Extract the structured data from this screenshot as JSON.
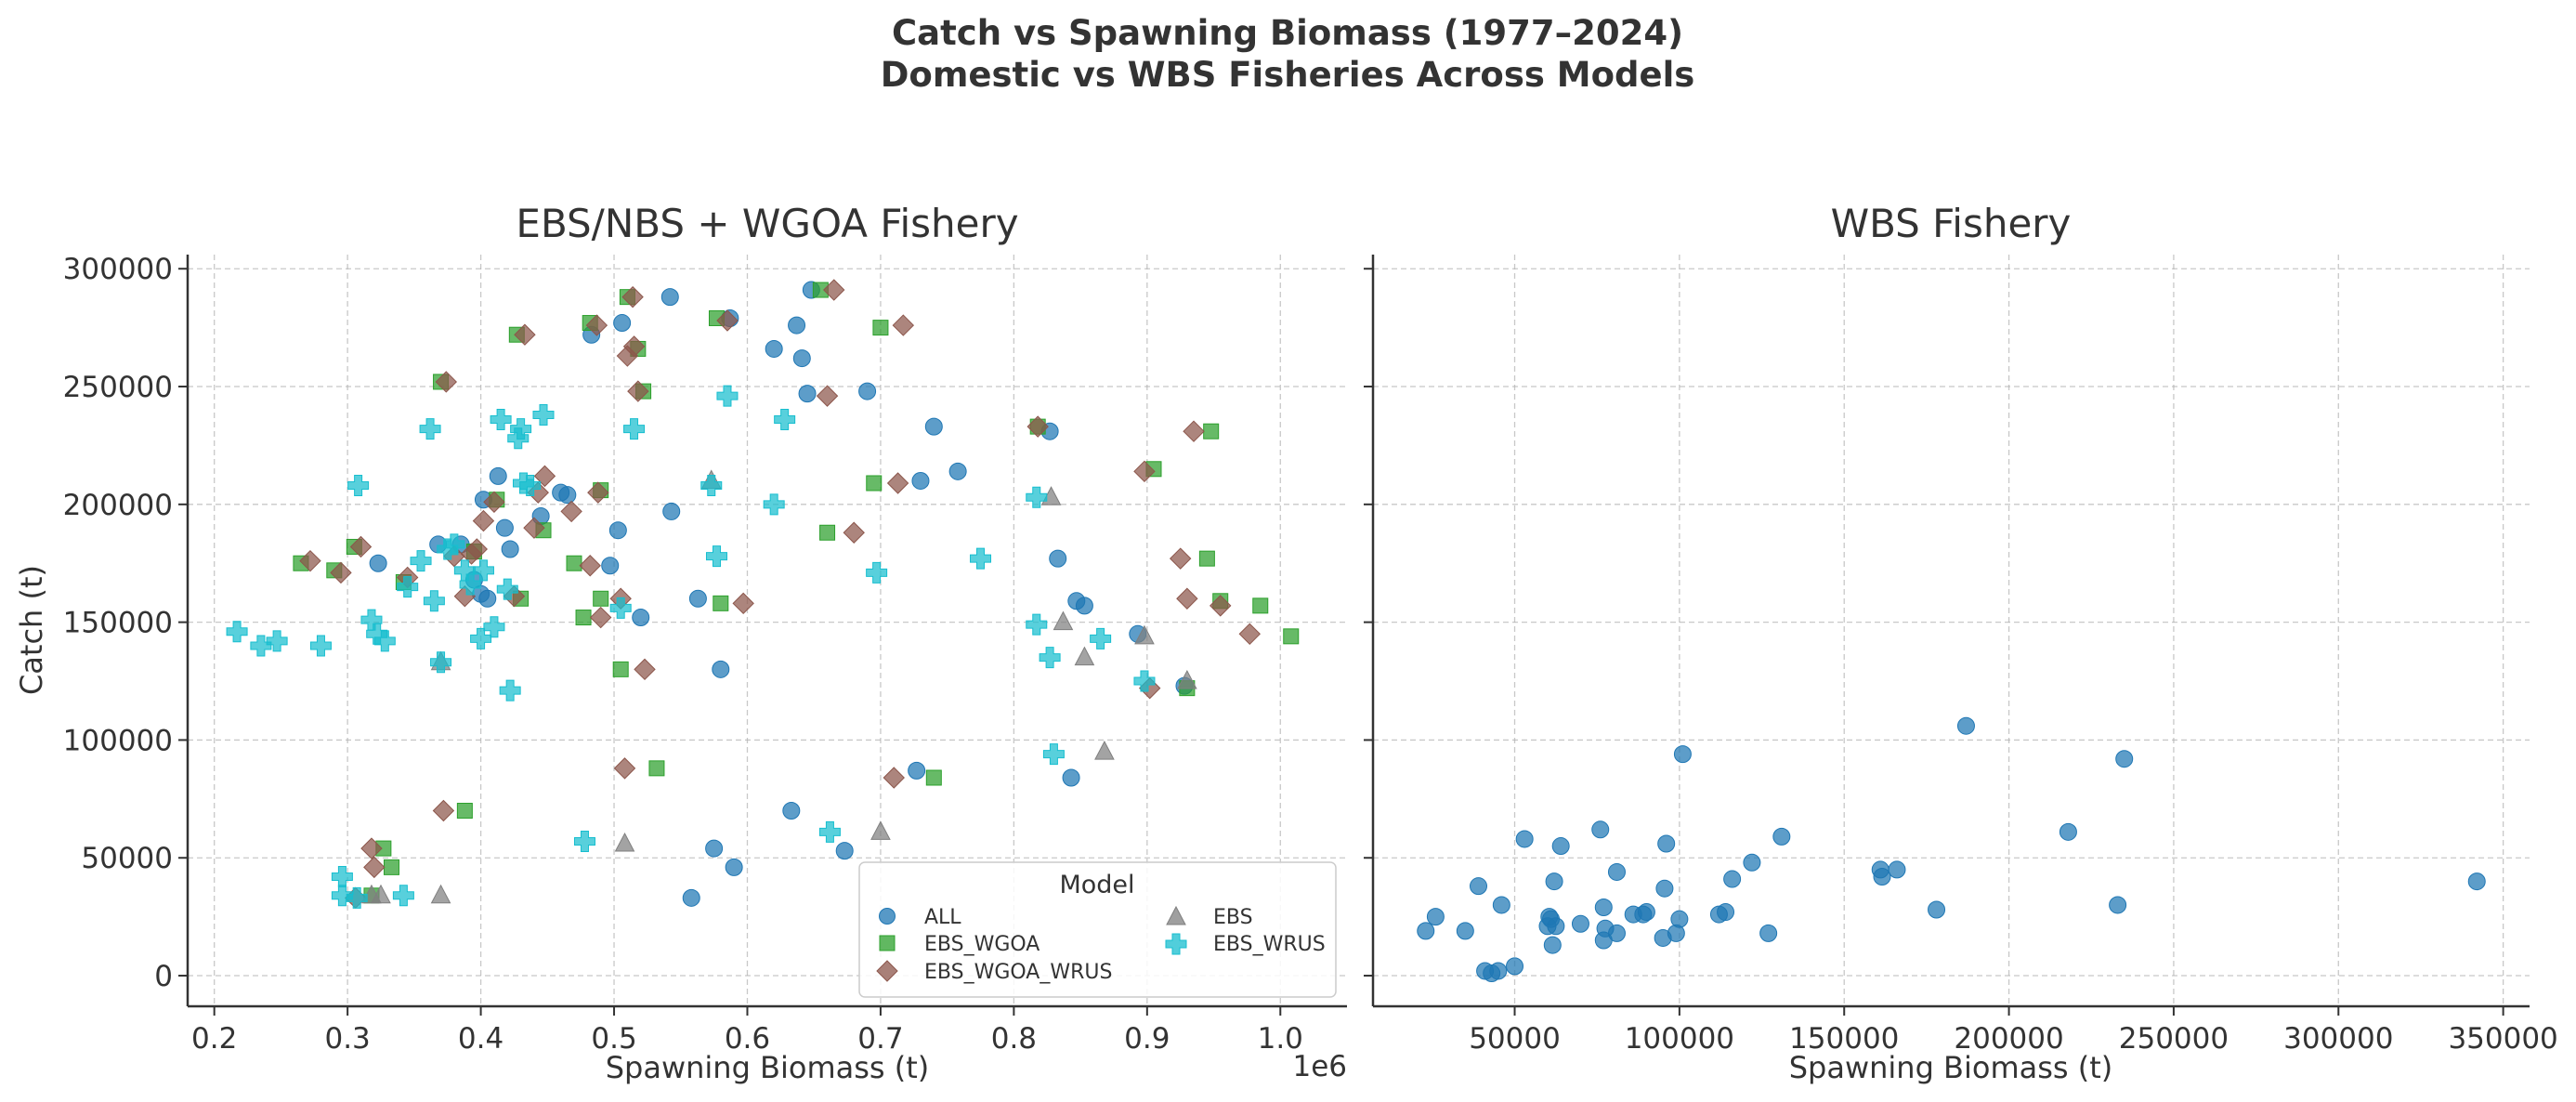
{
  "figure": {
    "title_line1": "Catch vs Spawning Biomass (1977–2024)",
    "title_line2": "Domestic vs WBS Fisheries Across Models"
  },
  "chart_data": [
    {
      "type": "scatter",
      "title": "EBS/NBS + WGOA Fishery",
      "xlabel": "Spawning Biomass (t)",
      "ylabel": "Catch (t)",
      "x_offset_label": "1e6",
      "xlim": [
        0.18,
        1.05
      ],
      "ylim": [
        -13000,
        306000
      ],
      "x_ticks": [
        0.2,
        0.3,
        0.4,
        0.5,
        0.6,
        0.7,
        0.8,
        0.9,
        1.0
      ],
      "x_tick_labels": [
        "0.2",
        "0.3",
        "0.4",
        "0.5",
        "0.6",
        "0.7",
        "0.8",
        "0.9",
        "1.0"
      ],
      "y_ticks": [
        0,
        50000,
        100000,
        150000,
        200000,
        250000,
        300000
      ],
      "y_tick_labels": [
        "0",
        "50000",
        "100000",
        "150000",
        "200000",
        "250000",
        "300000"
      ],
      "grid": true,
      "legend": {
        "title": "Model",
        "placement": "lower-right",
        "columns": 2,
        "order": [
          "ALL",
          "EBS_WGOA",
          "EBS_WGOA_WRUS",
          "EBS",
          "EBS_WRUS"
        ]
      },
      "series": [
        {
          "name": "ALL",
          "marker": "circle",
          "color": "#1f77b4",
          "points": [
            [
              0.323,
              175000
            ],
            [
              0.368,
              183000
            ],
            [
              0.385,
              183000
            ],
            [
              0.395,
              168000
            ],
            [
              0.4,
              162000
            ],
            [
              0.402,
              202000
            ],
            [
              0.405,
              160000
            ],
            [
              0.413,
              212000
            ],
            [
              0.418,
              190000
            ],
            [
              0.422,
              181000
            ],
            [
              0.445,
              195000
            ],
            [
              0.46,
              205000
            ],
            [
              0.465,
              204000
            ],
            [
              0.483,
              272000
            ],
            [
              0.497,
              174000
            ],
            [
              0.503,
              189000
            ],
            [
              0.506,
              277000
            ],
            [
              0.52,
              152000
            ],
            [
              0.543,
              197000
            ],
            [
              0.563,
              160000
            ],
            [
              0.542,
              288000
            ],
            [
              0.587,
              279000
            ],
            [
              0.575,
              54000
            ],
            [
              0.558,
              33000
            ],
            [
              0.59,
              46000
            ],
            [
              0.58,
              130000
            ],
            [
              0.62,
              266000
            ],
            [
              0.637,
              276000
            ],
            [
              0.641,
              262000
            ],
            [
              0.645,
              247000
            ],
            [
              0.648,
              291000
            ],
            [
              0.633,
              70000
            ],
            [
              0.673,
              53000
            ],
            [
              0.69,
              248000
            ],
            [
              0.727,
              87000
            ],
            [
              0.73,
              210000
            ],
            [
              0.74,
              233000
            ],
            [
              0.758,
              214000
            ],
            [
              0.827,
              231000
            ],
            [
              0.833,
              177000
            ],
            [
              0.847,
              159000
            ],
            [
              0.853,
              157000
            ],
            [
              0.843,
              84000
            ],
            [
              0.893,
              145000
            ],
            [
              0.928,
              123000
            ]
          ]
        },
        {
          "name": "EBS_WGOA",
          "marker": "square",
          "color": "#2ca02c",
          "points": [
            [
              0.265,
              175000
            ],
            [
              0.29,
              172000
            ],
            [
              0.305,
              182000
            ],
            [
              0.318,
              34000
            ],
            [
              0.327,
              54000
            ],
            [
              0.333,
              46000
            ],
            [
              0.342,
              167000
            ],
            [
              0.37,
              252000
            ],
            [
              0.388,
              70000
            ],
            [
              0.395,
              180000
            ],
            [
              0.412,
              202000
            ],
            [
              0.427,
              272000
            ],
            [
              0.43,
              160000
            ],
            [
              0.447,
              189000
            ],
            [
              0.47,
              175000
            ],
            [
              0.477,
              152000
            ],
            [
              0.482,
              277000
            ],
            [
              0.49,
              206000
            ],
            [
              0.49,
              160000
            ],
            [
              0.505,
              130000
            ],
            [
              0.51,
              288000
            ],
            [
              0.518,
              266000
            ],
            [
              0.522,
              248000
            ],
            [
              0.532,
              88000
            ],
            [
              0.577,
              279000
            ],
            [
              0.58,
              158000
            ],
            [
              0.655,
              291000
            ],
            [
              0.66,
              188000
            ],
            [
              0.695,
              209000
            ],
            [
              0.7,
              275000
            ],
            [
              0.74,
              84000
            ],
            [
              0.818,
              233000
            ],
            [
              0.905,
              215000
            ],
            [
              0.93,
              122000
            ],
            [
              0.945,
              177000
            ],
            [
              0.948,
              231000
            ],
            [
              0.955,
              159000
            ],
            [
              0.985,
              157000
            ],
            [
              1.008,
              144000
            ]
          ]
        },
        {
          "name": "EBS_WGOA_WRUS",
          "marker": "diamond",
          "color": "#8c564b",
          "points": [
            [
              0.272,
              176000
            ],
            [
              0.295,
              171000
            ],
            [
              0.31,
              182000
            ],
            [
              0.318,
              54000
            ],
            [
              0.32,
              46000
            ],
            [
              0.306,
              33000
            ],
            [
              0.345,
              169000
            ],
            [
              0.374,
              252000
            ],
            [
              0.372,
              70000
            ],
            [
              0.38,
              178000
            ],
            [
              0.388,
              161000
            ],
            [
              0.393,
              179000
            ],
            [
              0.397,
              181000
            ],
            [
              0.402,
              193000
            ],
            [
              0.41,
              201000
            ],
            [
              0.425,
              161000
            ],
            [
              0.433,
              272000
            ],
            [
              0.44,
              190000
            ],
            [
              0.443,
              205000
            ],
            [
              0.448,
              212000
            ],
            [
              0.468,
              197000
            ],
            [
              0.482,
              174000
            ],
            [
              0.487,
              276000
            ],
            [
              0.488,
              205000
            ],
            [
              0.49,
              152000
            ],
            [
              0.505,
              160000
            ],
            [
              0.508,
              88000
            ],
            [
              0.51,
              263000
            ],
            [
              0.514,
              288000
            ],
            [
              0.515,
              267000
            ],
            [
              0.518,
              248000
            ],
            [
              0.523,
              130000
            ],
            [
              0.585,
              278000
            ],
            [
              0.597,
              158000
            ],
            [
              0.66,
              246000
            ],
            [
              0.665,
              291000
            ],
            [
              0.68,
              188000
            ],
            [
              0.71,
              84000
            ],
            [
              0.713,
              209000
            ],
            [
              0.717,
              276000
            ],
            [
              0.818,
              233000
            ],
            [
              0.898,
              214000
            ],
            [
              0.902,
              122000
            ],
            [
              0.925,
              177000
            ],
            [
              0.93,
              160000
            ],
            [
              0.935,
              231000
            ],
            [
              0.955,
              157000
            ],
            [
              0.977,
              145000
            ]
          ]
        },
        {
          "name": "EBS",
          "marker": "triangle",
          "color": "#7f7f7f",
          "points": [
            [
              0.318,
              34000
            ],
            [
              0.325,
              34000
            ],
            [
              0.37,
              133000
            ],
            [
              0.37,
              34000
            ],
            [
              0.508,
              56000
            ],
            [
              0.573,
              210000
            ],
            [
              0.7,
              61000
            ],
            [
              0.828,
              203000
            ],
            [
              0.837,
              150000
            ],
            [
              0.853,
              135000
            ],
            [
              0.868,
              95000
            ],
            [
              0.898,
              144000
            ],
            [
              0.93,
              125000
            ]
          ]
        },
        {
          "name": "EBS_WRUS",
          "marker": "plus",
          "color": "#17becf",
          "points": [
            [
              0.217,
              146000
            ],
            [
              0.235,
              140000
            ],
            [
              0.247,
              142000
            ],
            [
              0.28,
              140000
            ],
            [
              0.296,
              42000
            ],
            [
              0.296,
              34000
            ],
            [
              0.307,
              33000
            ],
            [
              0.308,
              208000
            ],
            [
              0.318,
              151000
            ],
            [
              0.322,
              145000
            ],
            [
              0.328,
              142000
            ],
            [
              0.342,
              34000
            ],
            [
              0.345,
              165000
            ],
            [
              0.355,
              176000
            ],
            [
              0.362,
              232000
            ],
            [
              0.365,
              159000
            ],
            [
              0.37,
              133000
            ],
            [
              0.375,
              181000
            ],
            [
              0.38,
              183000
            ],
            [
              0.388,
              172000
            ],
            [
              0.392,
              166000
            ],
            [
              0.4,
              143000
            ],
            [
              0.402,
              172000
            ],
            [
              0.41,
              148000
            ],
            [
              0.415,
              236000
            ],
            [
              0.42,
              164000
            ],
            [
              0.422,
              121000
            ],
            [
              0.428,
              228000
            ],
            [
              0.43,
              232000
            ],
            [
              0.432,
              209000
            ],
            [
              0.437,
              208000
            ],
            [
              0.447,
              238000
            ],
            [
              0.478,
              57000
            ],
            [
              0.505,
              156000
            ],
            [
              0.515,
              232000
            ],
            [
              0.573,
              208000
            ],
            [
              0.577,
              178000
            ],
            [
              0.585,
              246000
            ],
            [
              0.62,
              200000
            ],
            [
              0.628,
              236000
            ],
            [
              0.662,
              61000
            ],
            [
              0.697,
              171000
            ],
            [
              0.775,
              177000
            ],
            [
              0.817,
              203000
            ],
            [
              0.817,
              149000
            ],
            [
              0.827,
              135000
            ],
            [
              0.83,
              94000
            ],
            [
              0.865,
              143000
            ],
            [
              0.898,
              125000
            ]
          ]
        }
      ]
    },
    {
      "type": "scatter",
      "title": "WBS Fishery",
      "xlabel": "Spawning Biomass (t)",
      "xlim": [
        7000,
        358000
      ],
      "ylim": [
        -13000,
        306000
      ],
      "x_ticks": [
        50000,
        100000,
        150000,
        200000,
        250000,
        300000,
        350000
      ],
      "x_tick_labels": [
        "50000",
        "100000",
        "150000",
        "200000",
        "250000",
        "300000",
        "350000"
      ],
      "y_ticks": [
        0,
        50000,
        100000,
        150000,
        200000,
        250000,
        300000
      ],
      "shared_y": true,
      "grid": true,
      "series": [
        {
          "name": "ALL",
          "marker": "circle",
          "color": "#1f77b4",
          "points": [
            [
              23000,
              19000
            ],
            [
              26000,
              25000
            ],
            [
              35000,
              19000
            ],
            [
              39000,
              38000
            ],
            [
              41000,
              2000
            ],
            [
              43000,
              1000
            ],
            [
              45000,
              2000
            ],
            [
              46000,
              30000
            ],
            [
              50000,
              4000
            ],
            [
              53000,
              58000
            ],
            [
              60000,
              21000
            ],
            [
              60500,
              25000
            ],
            [
              61000,
              24000
            ],
            [
              61500,
              13000
            ],
            [
              62000,
              40000
            ],
            [
              62500,
              21000
            ],
            [
              64000,
              55000
            ],
            [
              70000,
              22000
            ],
            [
              76000,
              62000
            ],
            [
              77000,
              29000
            ],
            [
              77000,
              15000
            ],
            [
              77500,
              20000
            ],
            [
              81000,
              44000
            ],
            [
              81000,
              18000
            ],
            [
              86000,
              26000
            ],
            [
              89000,
              26000
            ],
            [
              90000,
              27000
            ],
            [
              95000,
              16000
            ],
            [
              95500,
              37000
            ],
            [
              96000,
              56000
            ],
            [
              99000,
              18000
            ],
            [
              100000,
              24000
            ],
            [
              101000,
              94000
            ],
            [
              112000,
              26000
            ],
            [
              114000,
              27000
            ],
            [
              116000,
              41000
            ],
            [
              122000,
              48000
            ],
            [
              127000,
              18000
            ],
            [
              131000,
              59000
            ],
            [
              161000,
              45000
            ],
            [
              161500,
              42000
            ],
            [
              166000,
              45000
            ],
            [
              178000,
              28000
            ],
            [
              187000,
              106000
            ],
            [
              218000,
              61000
            ],
            [
              233000,
              30000
            ],
            [
              235000,
              92000
            ],
            [
              342000,
              40000
            ]
          ]
        }
      ]
    }
  ]
}
